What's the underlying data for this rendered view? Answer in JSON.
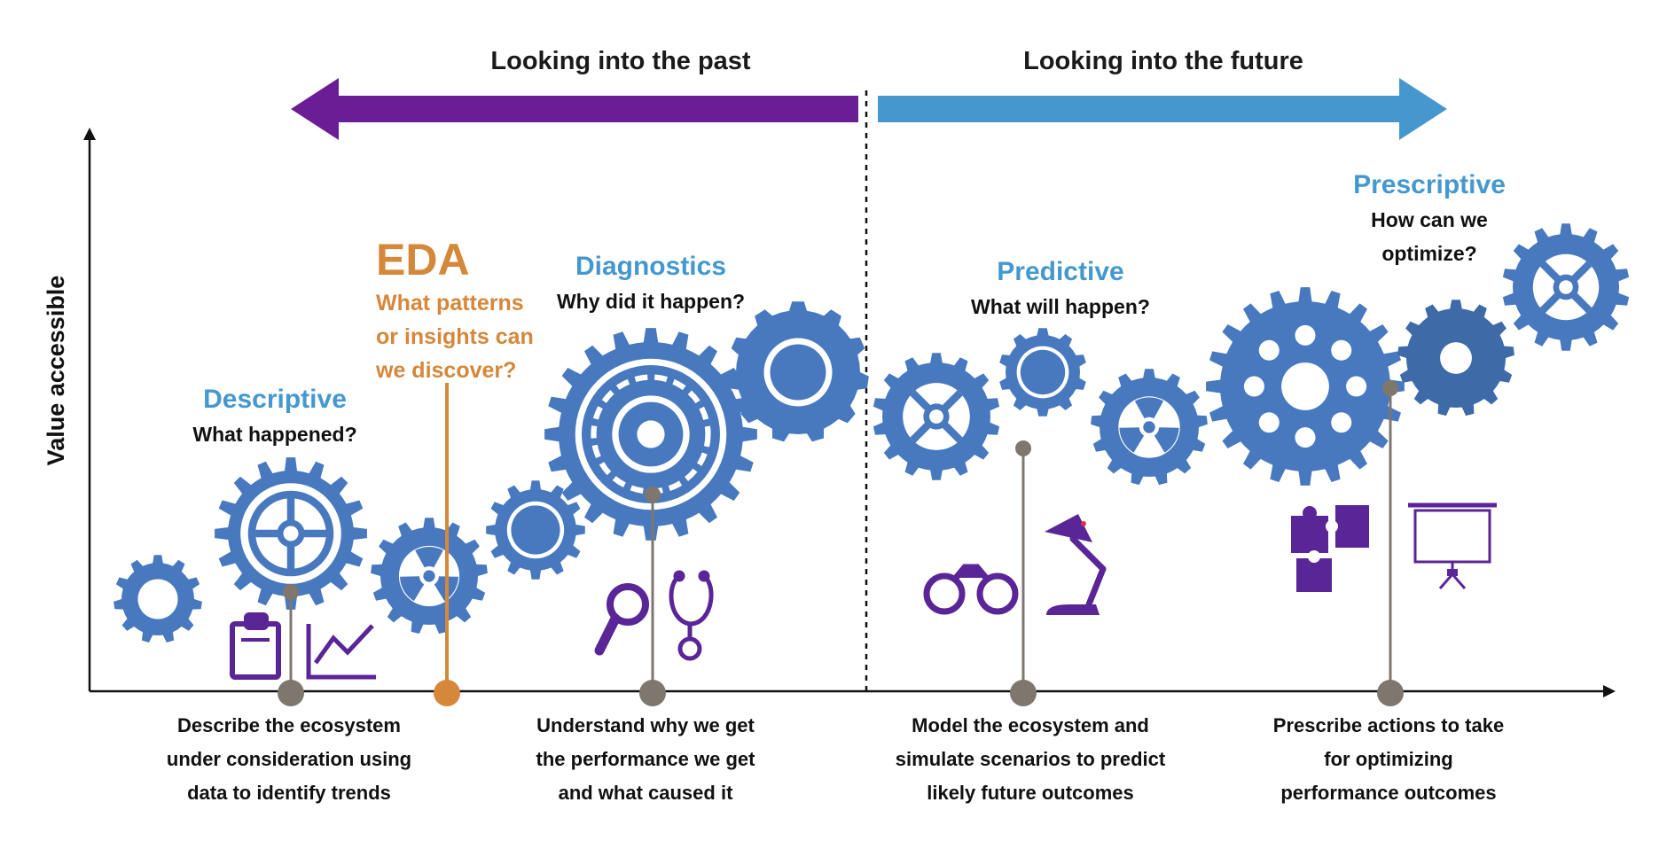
{
  "colors": {
    "purple": "#6b1d96",
    "icon_purple": "#5a2596",
    "blue_arrow": "#4797cf",
    "gear": "#4879bf",
    "gear_dark": "#3e6aa8",
    "title_blue": "#4598cf",
    "eda_orange": "#d5873a",
    "pin_gray": "#7f776e",
    "text_dark": "#111111"
  },
  "header": {
    "past_label": "Looking into the past",
    "future_label": "Looking into the future"
  },
  "y_axis": {
    "label": "Value accessible"
  },
  "stages": [
    {
      "id": "descriptive",
      "title": "Descriptive",
      "question": "What happened?",
      "description": [
        "Describe the ecosystem",
        "under consideration using",
        "data to identify trends"
      ],
      "icons": [
        "clipboard-icon",
        "trend-chart-icon"
      ]
    },
    {
      "id": "diagnostics",
      "title": "Diagnostics",
      "question": "Why did it happen?",
      "description": [
        "Understand why we get",
        "the performance we get",
        "and what caused it"
      ],
      "icons": [
        "magnifier-icon",
        "stethoscope-icon"
      ]
    },
    {
      "id": "predictive",
      "title": "Predictive",
      "question": "What will happen?",
      "description": [
        "Model the ecosystem and",
        "simulate scenarios to predict",
        "likely future outcomes"
      ],
      "icons": [
        "binoculars-icon",
        "desk-lamp-icon"
      ]
    },
    {
      "id": "prescriptive",
      "title": "Prescriptive",
      "question_lines": [
        "How can we",
        "optimize?"
      ],
      "description": [
        "Prescribe actions to take",
        "for optimizing",
        "performance outcomes"
      ],
      "icons": [
        "puzzle-icon",
        "projector-screen-icon"
      ]
    }
  ],
  "eda": {
    "title": "EDA",
    "question_lines": [
      "What patterns",
      "or insights can",
      "we discover?"
    ]
  }
}
